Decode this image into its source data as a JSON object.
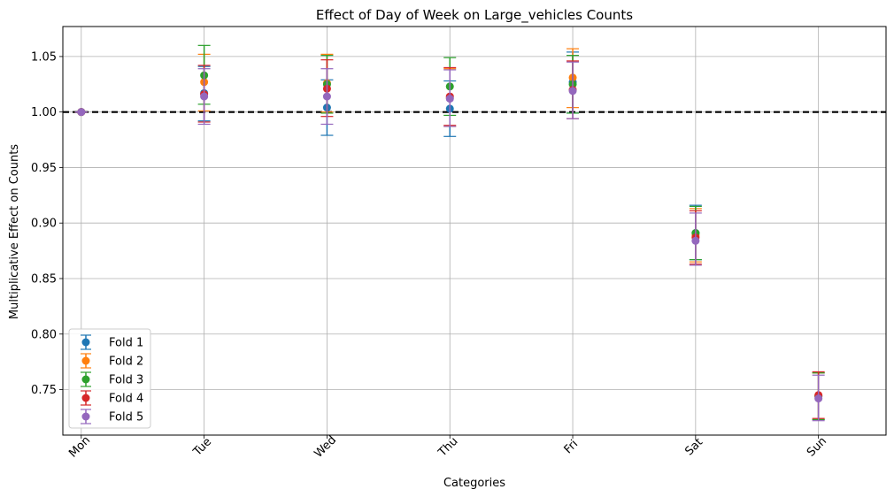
{
  "chart_data": {
    "type": "scatter",
    "title": "Effect of Day of Week on Large_vehicles Counts",
    "xlabel": "Categories",
    "ylabel": "Multiplicative Effect on Counts",
    "categories": [
      "Mon",
      "Tue",
      "Wed",
      "Thu",
      "Fri",
      "Sat",
      "Sun"
    ],
    "ylim": [
      0.709,
      1.077
    ],
    "yticks": [
      0.75,
      0.8,
      0.85,
      0.9,
      0.95,
      1.0,
      1.05
    ],
    "ytick_labels": [
      "0.75",
      "0.80",
      "0.85",
      "0.90",
      "0.95",
      "1.00",
      "1.05"
    ],
    "grid": true,
    "legend_position": "lower-left",
    "reference_line": 1.0,
    "series": [
      {
        "name": "Fold 1",
        "color": "#1f77b4",
        "values": [
          1.0,
          1.017,
          1.004,
          1.003,
          1.027,
          0.891,
          0.744
        ],
        "err_low": [
          1.0,
          0.992,
          0.979,
          0.978,
          0.999,
          0.867,
          0.723
        ],
        "err_high": [
          1.0,
          1.041,
          1.029,
          1.028,
          1.054,
          0.916,
          0.765
        ]
      },
      {
        "name": "Fold 2",
        "color": "#ff7f0e",
        "values": [
          1.0,
          1.027,
          1.026,
          1.013,
          1.031,
          0.889,
          0.744
        ],
        "err_low": [
          1.0,
          1.001,
          1.0,
          0.987,
          1.004,
          0.865,
          0.723
        ],
        "err_high": [
          1.0,
          1.052,
          1.052,
          1.039,
          1.057,
          0.913,
          0.765
        ]
      },
      {
        "name": "Fold 3",
        "color": "#2ca02c",
        "values": [
          1.0,
          1.033,
          1.025,
          1.023,
          1.025,
          0.891,
          0.744
        ],
        "err_low": [
          1.0,
          1.007,
          0.999,
          0.997,
          0.999,
          0.867,
          0.723
        ],
        "err_high": [
          1.0,
          1.06,
          1.051,
          1.049,
          1.051,
          0.915,
          0.765
        ]
      },
      {
        "name": "Fold 4",
        "color": "#d62728",
        "values": [
          1.0,
          1.016,
          1.021,
          1.014,
          1.02,
          0.887,
          0.745
        ],
        "err_low": [
          1.0,
          0.991,
          0.996,
          0.988,
          0.994,
          0.863,
          0.724
        ],
        "err_high": [
          1.0,
          1.042,
          1.047,
          1.04,
          1.046,
          0.911,
          0.766
        ]
      },
      {
        "name": "Fold 5",
        "color": "#9467bd",
        "values": [
          1.0,
          1.014,
          1.014,
          1.012,
          1.019,
          0.884,
          0.742
        ],
        "err_low": [
          1.0,
          0.989,
          0.989,
          0.987,
          0.994,
          0.862,
          0.722
        ],
        "err_high": [
          1.0,
          1.039,
          1.039,
          1.038,
          1.045,
          0.909,
          0.763
        ]
      }
    ]
  }
}
